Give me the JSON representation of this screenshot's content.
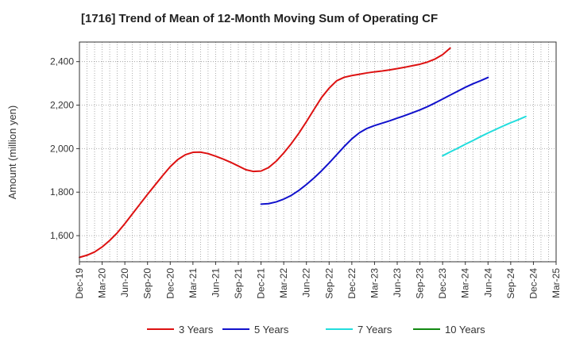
{
  "chart_data": {
    "type": "line",
    "title": "[1716]  Trend of Mean of 12-Month Moving Sum of Operating CF",
    "xlabel": "",
    "ylabel": "Amount (million yen)",
    "ylim": [
      1480,
      2490
    ],
    "yticks": [
      1600,
      1800,
      2000,
      2200,
      2400
    ],
    "ytick_labels": [
      "1,600",
      "1,800",
      "2,000",
      "2,200",
      "2,400"
    ],
    "x_tick_labels": [
      "Dec-19",
      "Mar-20",
      "Jun-20",
      "Sep-20",
      "Dec-20",
      "Mar-21",
      "Jun-21",
      "Sep-21",
      "Dec-21",
      "Mar-22",
      "Jun-22",
      "Sep-22",
      "Dec-22",
      "Mar-23",
      "Jun-23",
      "Sep-23",
      "Dec-23",
      "Mar-24",
      "Jun-24",
      "Sep-24",
      "Dec-24",
      "Mar-25"
    ],
    "grid": true,
    "legend_position": "bottom",
    "series": [
      {
        "name": "3 Years",
        "color": "#dd1111",
        "start_index": 0,
        "values": [
          1500,
          1510,
          1525,
          1548,
          1578,
          1613,
          1655,
          1700,
          1745,
          1790,
          1833,
          1876,
          1917,
          1950,
          1972,
          1983,
          1984,
          1977,
          1965,
          1952,
          1937,
          1920,
          1903,
          1895,
          1897,
          1913,
          1942,
          1980,
          2023,
          2071,
          2124,
          2180,
          2235,
          2278,
          2312,
          2328,
          2336,
          2342,
          2348,
          2353,
          2357,
          2362,
          2368,
          2374,
          2381,
          2388,
          2398,
          2412,
          2432,
          2462
        ]
      },
      {
        "name": "5 Years",
        "color": "#1111cc",
        "start_index": 24,
        "values": [
          1745,
          1747,
          1755,
          1768,
          1785,
          1808,
          1835,
          1865,
          1898,
          1934,
          1972,
          2010,
          2045,
          2073,
          2093,
          2106,
          2117,
          2128,
          2140,
          2152,
          2165,
          2178,
          2193,
          2210,
          2228,
          2246,
          2264,
          2282,
          2298,
          2312,
          2327
        ]
      },
      {
        "name": "7 Years",
        "color": "#22dddd",
        "start_index": 48,
        "values": [
          1967,
          1985,
          2002,
          2020,
          2037,
          2055,
          2072,
          2088,
          2104,
          2119,
          2133,
          2148
        ]
      },
      {
        "name": "10 Years",
        "color": "#118811",
        "start_index": 0,
        "values": []
      }
    ]
  }
}
